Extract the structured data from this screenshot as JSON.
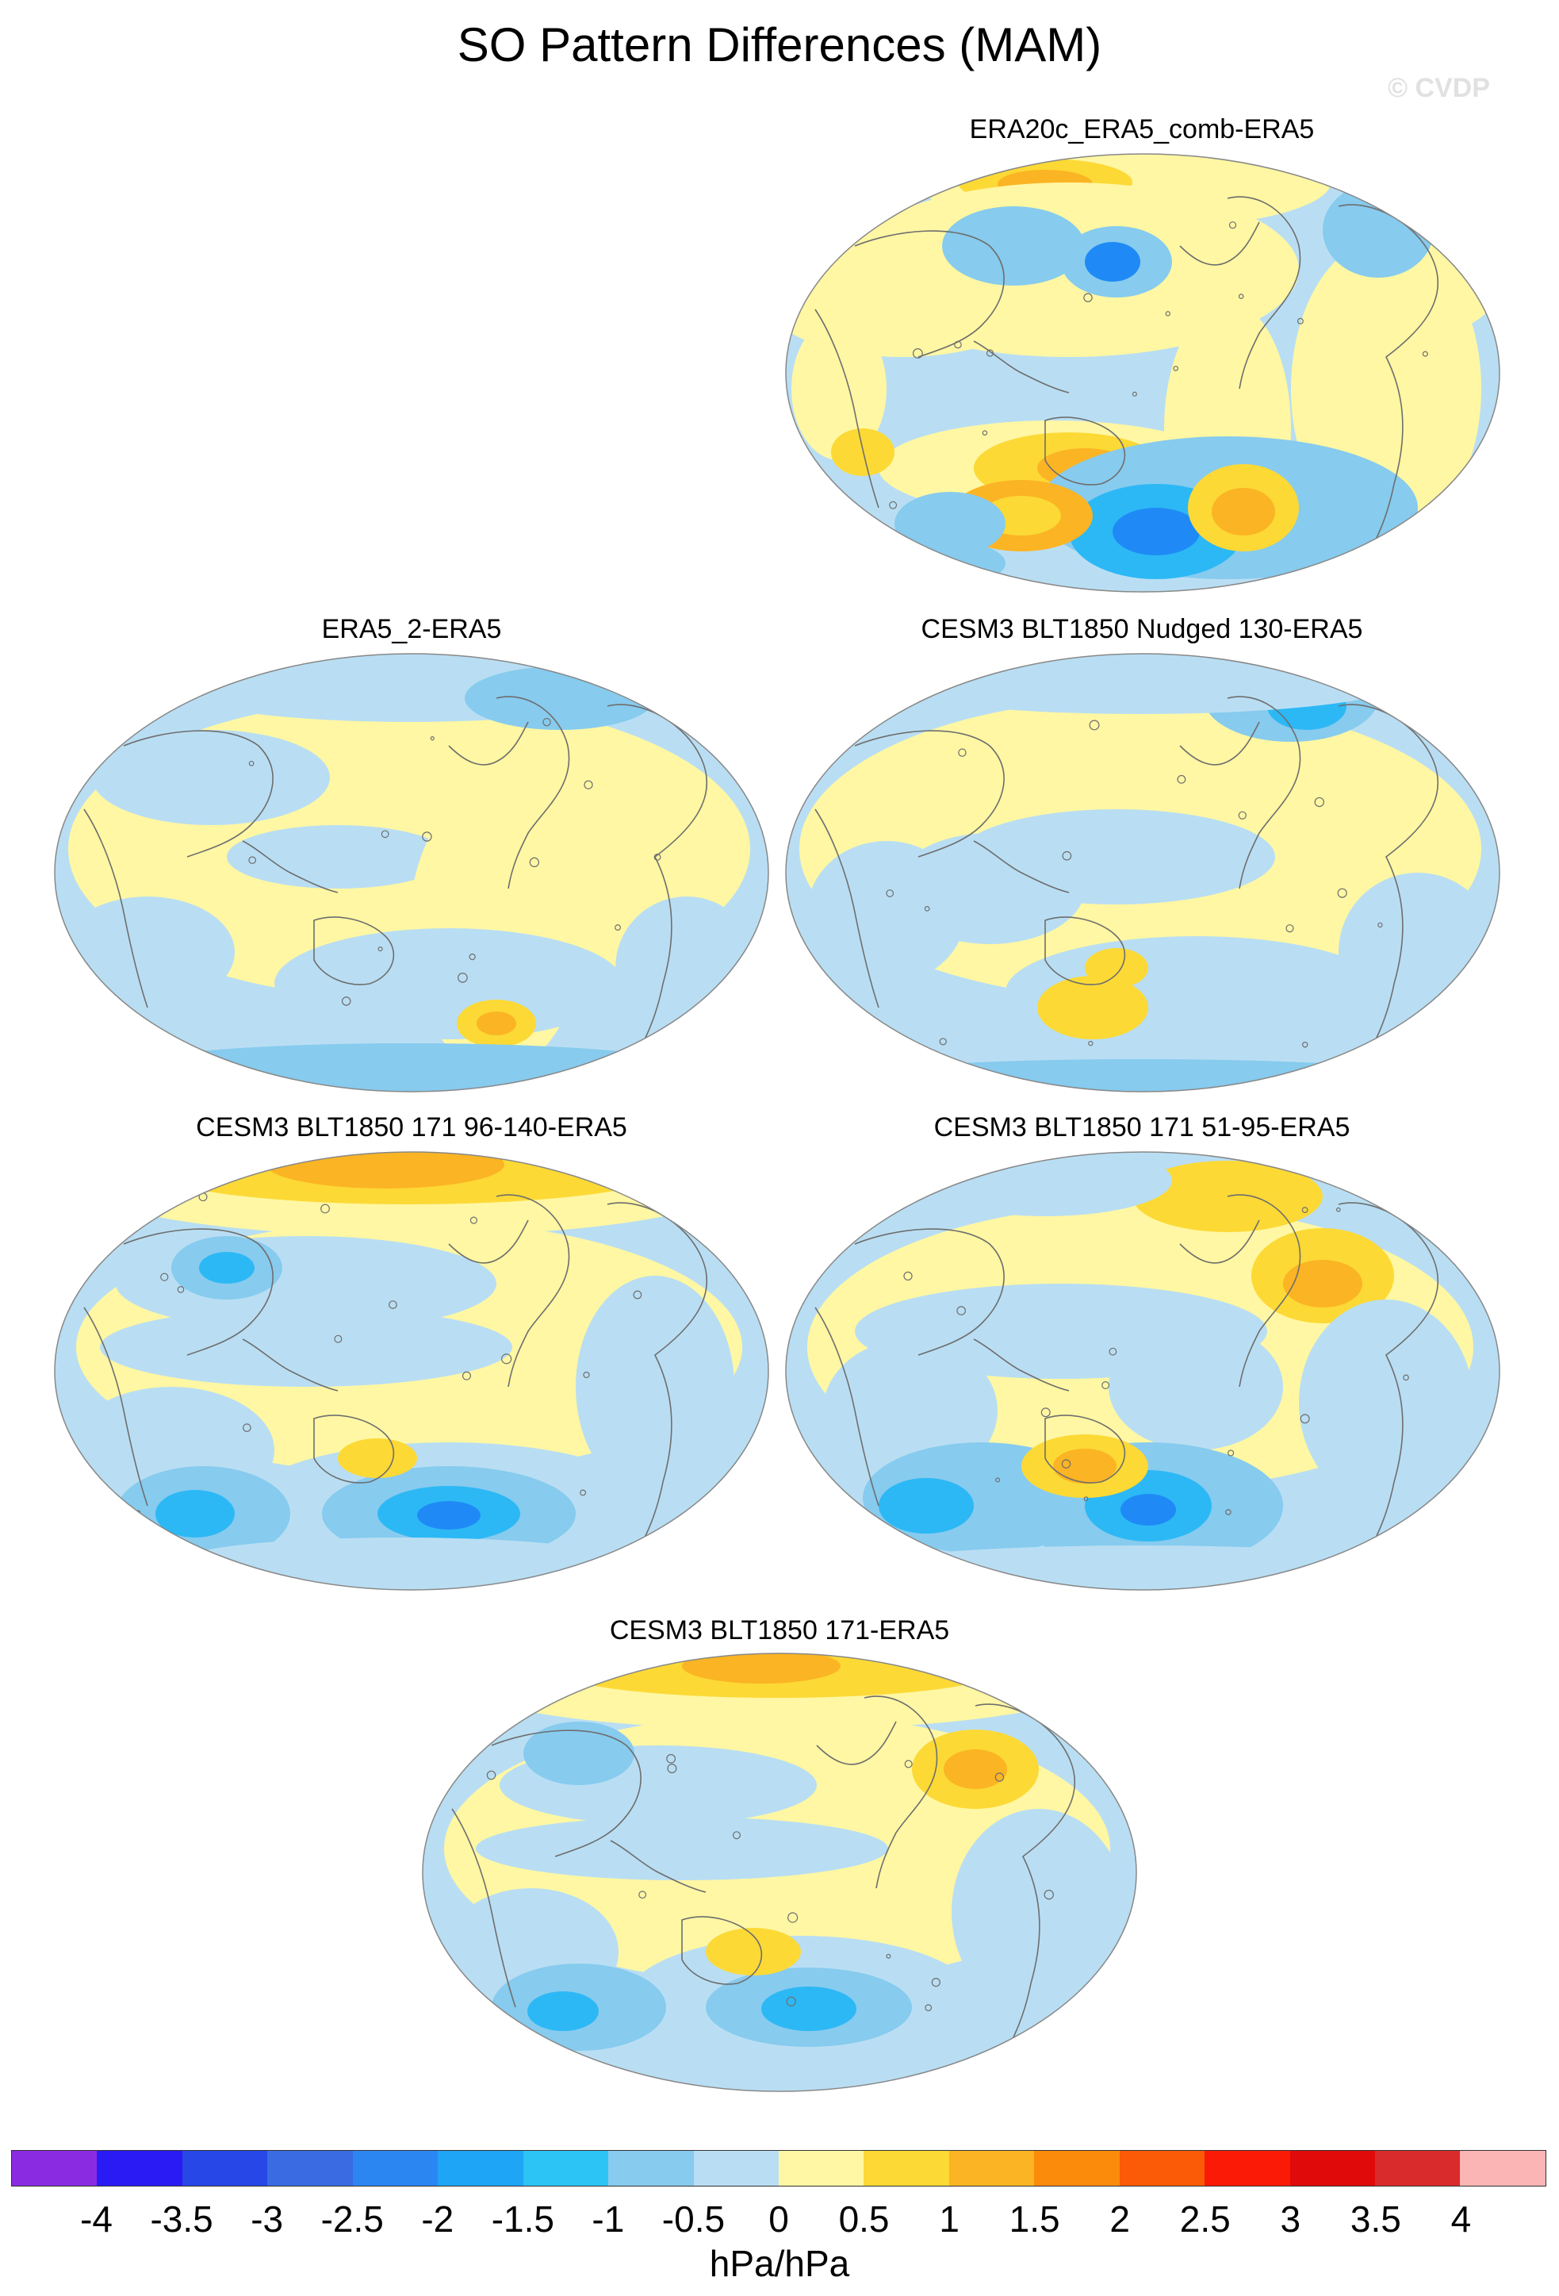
{
  "title": "SO Pattern Differences (MAM)",
  "watermark": "© CVDP",
  "colors": {
    "ocean_base": "#b9def3",
    "neg_light": "#b9def3",
    "neg_mid": "#87cbee",
    "neg_strong": "#2cb8f5",
    "neg_deep": "#1f8af5",
    "pos_light": "#fff7a3",
    "pos_mid": "#fcd935",
    "pos_strong": "#fbb423",
    "coast": "#6e6e6e"
  },
  "panels": [
    {
      "title": "ERA20c_ERA5_comb-ERA5"
    },
    {
      "title": "ERA5_2-ERA5"
    },
    {
      "title": "CESM3 BLT1850 Nudged 130-ERA5"
    },
    {
      "title": "CESM3 BLT1850 171 96-140-ERA5"
    },
    {
      "title": "CESM3 BLT1850 171 51-95-ERA5"
    },
    {
      "title": "CESM3 BLT1850 171-ERA5"
    }
  ],
  "colorbar": {
    "colors": [
      "#8a2be2",
      "#2a1bf5",
      "#2747e6",
      "#3a6be2",
      "#2c86f2",
      "#1fa5f5",
      "#2cc3f5",
      "#87cbee",
      "#b9def3",
      "#fff7a3",
      "#fcd935",
      "#fbb423",
      "#fa8b0b",
      "#fb5a07",
      "#fb1a06",
      "#e00a0a",
      "#d92b2b",
      "#fbb5b5"
    ],
    "labels": [
      "-4",
      "-3.5",
      "-3",
      "-2.5",
      "-2",
      "-1.5",
      "-1",
      "-0.5",
      "0",
      "0.5",
      "1",
      "1.5",
      "2",
      "2.5",
      "3",
      "3.5",
      "4"
    ],
    "units": "hPa/hPa"
  }
}
